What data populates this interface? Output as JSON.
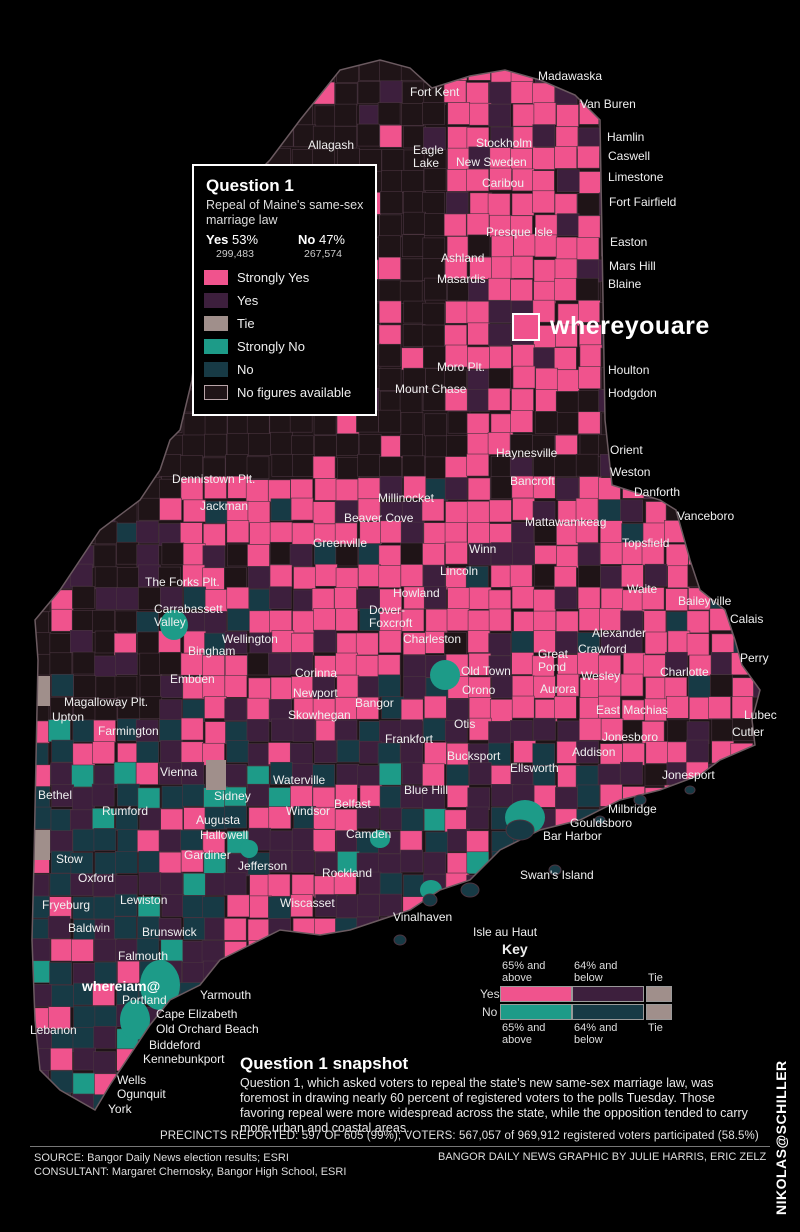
{
  "colors": {
    "strongly_yes": "#f0538d",
    "yes": "#3d1f3d",
    "tie": "#a08f8b",
    "strongly_no": "#1d9b88",
    "no": "#173a45",
    "no_figures": "#1f1417",
    "background": "#000000"
  },
  "legend": {
    "title": "Question 1",
    "subtitle": "Repeal of Maine's same-sex marriage law",
    "yes_label": "Yes",
    "yes_pct": "53%",
    "yes_votes": "299,483",
    "no_label": "No",
    "no_pct": "47%",
    "no_votes": "267,574",
    "items": [
      {
        "label": "Strongly Yes"
      },
      {
        "label": "Yes"
      },
      {
        "label": "Tie"
      },
      {
        "label": "Strongly No"
      },
      {
        "label": "No"
      },
      {
        "label": "No figures available"
      }
    ]
  },
  "markers": {
    "whereyouare": "whereyouare",
    "whereiam": "whereiam@"
  },
  "key": {
    "title": "Key",
    "top_left": "65% and above",
    "top_mid": "64% and below",
    "top_tie": "Tie",
    "row_yes": "Yes",
    "row_no": "No",
    "bot_left": "65% and above",
    "bot_mid": "64% and below",
    "bot_tie": "Tie"
  },
  "places": [
    "Madawaska",
    "Fort Kent",
    "Van Buren",
    "Allagash",
    "Eagle Lake",
    "Stockholm",
    "Hamlin",
    "New Sweden",
    "Caswell",
    "Limestone",
    "Caribou",
    "Fort Fairfield",
    "Presque Isle",
    "Easton",
    "Ashland",
    "Mars Hill",
    "Masardis",
    "Blaine",
    "Moro Plt.",
    "Houlton",
    "Mount Chase",
    "Hodgdon",
    "Orient",
    "Haynesville",
    "Weston",
    "Dennistown Plt.",
    "Bancroft",
    "Danforth",
    "Jackman",
    "Millinocket",
    "Beaver Cove",
    "Vanceboro",
    "Mattawamkeag",
    "Topsfield",
    "Greenville",
    "Winn",
    "Lincoln",
    "The Forks Plt.",
    "Waite",
    "Howland",
    "Baileyville",
    "Carrabassett Valley",
    "Dover-Foxcroft",
    "Calais",
    "Wellington",
    "Alexander",
    "Charleston",
    "Bingham",
    "Crawford",
    "Great Pond",
    "Perry",
    "Old Town",
    "Wesley",
    "Charlotte",
    "Embden",
    "Corinna",
    "Orono",
    "Aurora",
    "Magalloway Plt.",
    "Newport",
    "Upton",
    "Skowhegan",
    "Bangor",
    "East Machias",
    "Lubec",
    "Otis",
    "Farmington",
    "Jonesboro",
    "Cutler",
    "Frankfort",
    "Addison",
    "Bucksport",
    "Vienna",
    "Ellsworth",
    "Jonesport",
    "Waterville",
    "Bethel",
    "Sidney",
    "Belfast",
    "Blue Hill",
    "Milbridge",
    "Rumford",
    "Windsor",
    "Gouldsboro",
    "Augusta",
    "Bar Harbor",
    "Hallowell",
    "Camden",
    "Stow",
    "Gardiner",
    "Jefferson",
    "Oxford",
    "Rockland",
    "Swan's Island",
    "Lewiston",
    "Wiscasset",
    "Fryeburg",
    "Vinalhaven",
    "Isle au Haut",
    "Baldwin",
    "Brunswick",
    "Falmouth",
    "Yarmouth",
    "Portland",
    "Cape Elizabeth",
    "Old Orchard Beach",
    "Lebanon",
    "Biddeford",
    "Kennebunkport",
    "Wells",
    "Ogunquit",
    "York"
  ],
  "snapshot": {
    "title": "Question 1 snapshot",
    "text": "Question 1, which asked voters to repeal the state's new same-sex marriage law, was foremost in drawing nearly 60 percent of registered voters to the polls Tuesday. Those favoring repeal were more widespread across the state, while the opposition tended to carry more urban and coastal areas."
  },
  "footer": {
    "precincts": "PRECINCTS REPORTED: 597 OF 605 (99%); VOTERS: 567,057 of 969,912 registered voters participated (58.5%)",
    "source": "SOURCE: Bangor Daily News election results; ESRI",
    "consultant": "CONSULTANT: Margaret Chernosky, Bangor High School, ESRI",
    "credit": "BANGOR DAILY NEWS GRAPHIC BY JULIE HARRIS, ERIC ZELZ",
    "signature": "NIKOLAS@SCHILLER"
  }
}
